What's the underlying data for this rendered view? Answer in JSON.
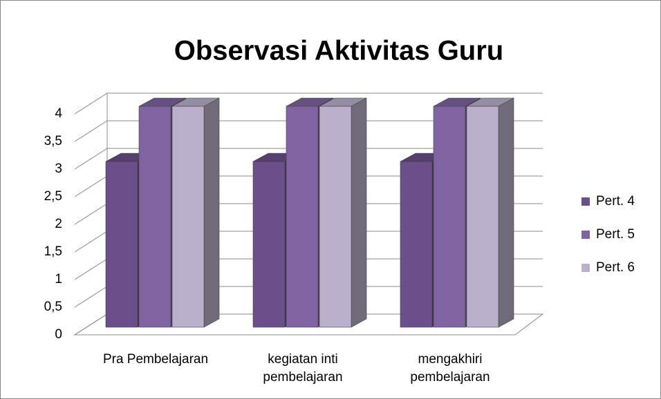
{
  "chart_data": {
    "type": "bar3d",
    "title": "Observasi Aktivitas Guru",
    "categories": [
      "Pra Pembelajaran",
      "kegiatan inti pembelajaran",
      "mengakhiri pembelajaran"
    ],
    "series": [
      {
        "name": "Pert. 4",
        "color": "#6a4f8a",
        "values": [
          3,
          3,
          3
        ]
      },
      {
        "name": "Pert. 5",
        "color": "#8064a2",
        "values": [
          4,
          4,
          4
        ]
      },
      {
        "name": "Pert. 6",
        "color": "#bab0cc",
        "values": [
          4,
          4,
          4
        ]
      }
    ],
    "ylim": [
      0,
      4
    ],
    "yticks": [
      0,
      {
        "value": 0.5,
        "label": "0,5"
      },
      1,
      {
        "value": 1.5,
        "label": "1,5"
      },
      2,
      {
        "value": 2.5,
        "label": "2,5"
      },
      3,
      {
        "value": 3.5,
        "label": "3,5"
      },
      4
    ],
    "grid": true,
    "legend": "right"
  }
}
